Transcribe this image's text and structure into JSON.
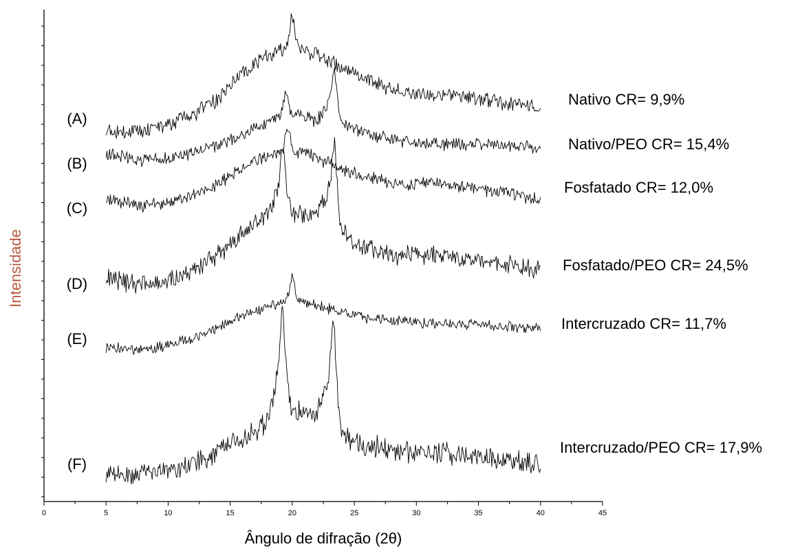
{
  "chart_data": {
    "type": "line",
    "title": "",
    "xlabel": "Ângulo de difração (2θ)",
    "ylabel": "Intensidade",
    "xlim": [
      0,
      45
    ],
    "xticks": [
      0,
      5,
      10,
      15,
      20,
      25,
      30,
      35,
      40,
      45
    ],
    "x_range_data": [
      5,
      40
    ],
    "y_ticks_labeled": false,
    "grid": false,
    "legend": "inline labels: letters left of curves, names right",
    "series": [
      {
        "letter": "(A)",
        "name": "Nativo CR= 9,9%",
        "peaks": [
          [
            20.0,
            1.0
          ]
        ],
        "points": [
          [
            5,
            0.05
          ],
          [
            8,
            0.04
          ],
          [
            10,
            0.12
          ],
          [
            12,
            0.22
          ],
          [
            14,
            0.4
          ],
          [
            16,
            0.7
          ],
          [
            18,
            0.88
          ],
          [
            20,
            1.0
          ],
          [
            22,
            0.9
          ],
          [
            24,
            0.75
          ],
          [
            26,
            0.62
          ],
          [
            28,
            0.52
          ],
          [
            30,
            0.46
          ],
          [
            32,
            0.44
          ],
          [
            34,
            0.42
          ],
          [
            36,
            0.38
          ],
          [
            38,
            0.34
          ],
          [
            40,
            0.3
          ]
        ]
      },
      {
        "letter": "(B)",
        "name": "Nativo/PEO CR= 15,4%",
        "peaks": [
          [
            19.5,
            0.75
          ],
          [
            23.4,
            0.95
          ]
        ],
        "points": [
          [
            5,
            0.18
          ],
          [
            8,
            0.1
          ],
          [
            10,
            0.12
          ],
          [
            12,
            0.2
          ],
          [
            14,
            0.3
          ],
          [
            16,
            0.45
          ],
          [
            18,
            0.6
          ],
          [
            20,
            0.72
          ],
          [
            22,
            0.62
          ],
          [
            23.4,
            0.95
          ],
          [
            24,
            0.6
          ],
          [
            26,
            0.45
          ],
          [
            28,
            0.38
          ],
          [
            30,
            0.34
          ],
          [
            32,
            0.32
          ],
          [
            34,
            0.32
          ],
          [
            36,
            0.3
          ],
          [
            38,
            0.28
          ],
          [
            40,
            0.26
          ]
        ]
      },
      {
        "letter": "(C)",
        "name": "Fosfatado  CR= 12,0%",
        "peaks": [
          [
            19.6,
            0.85
          ]
        ],
        "points": [
          [
            5,
            0.2
          ],
          [
            8,
            0.12
          ],
          [
            10,
            0.15
          ],
          [
            12,
            0.25
          ],
          [
            14,
            0.4
          ],
          [
            16,
            0.62
          ],
          [
            17,
            0.72
          ],
          [
            19,
            0.8
          ],
          [
            20,
            0.85
          ],
          [
            22,
            0.75
          ],
          [
            24,
            0.6
          ],
          [
            26,
            0.5
          ],
          [
            28,
            0.42
          ],
          [
            30,
            0.4
          ],
          [
            32,
            0.42
          ],
          [
            34,
            0.36
          ],
          [
            36,
            0.32
          ],
          [
            38,
            0.26
          ],
          [
            40,
            0.18
          ]
        ]
      },
      {
        "letter": "(D)",
        "name": "Fosfatado/PEO CR= 24,5%",
        "peaks": [
          [
            19.2,
            1.0
          ],
          [
            23.4,
            1.0
          ]
        ],
        "points": [
          [
            5,
            0.15
          ],
          [
            8,
            0.1
          ],
          [
            10,
            0.12
          ],
          [
            12,
            0.22
          ],
          [
            14,
            0.35
          ],
          [
            16,
            0.55
          ],
          [
            17,
            0.65
          ],
          [
            18,
            0.72
          ],
          [
            19.2,
            1.0
          ],
          [
            20,
            0.72
          ],
          [
            22,
            0.72
          ],
          [
            23.4,
            1.0
          ],
          [
            24,
            0.55
          ],
          [
            26,
            0.42
          ],
          [
            28,
            0.36
          ],
          [
            30,
            0.36
          ],
          [
            32,
            0.34
          ],
          [
            34,
            0.32
          ],
          [
            36,
            0.3
          ],
          [
            38,
            0.26
          ],
          [
            40,
            0.22
          ]
        ]
      },
      {
        "letter": "(E)",
        "name": "Intercruzado  CR= 11,7%",
        "peaks": [
          [
            20.0,
            0.95
          ]
        ],
        "points": [
          [
            5,
            0.15
          ],
          [
            8,
            0.1
          ],
          [
            10,
            0.18
          ],
          [
            12,
            0.3
          ],
          [
            14,
            0.45
          ],
          [
            16,
            0.65
          ],
          [
            18,
            0.8
          ],
          [
            20,
            0.95
          ],
          [
            22,
            0.82
          ],
          [
            24,
            0.7
          ],
          [
            26,
            0.62
          ],
          [
            28,
            0.58
          ],
          [
            30,
            0.55
          ],
          [
            32,
            0.54
          ],
          [
            34,
            0.52
          ],
          [
            36,
            0.5
          ],
          [
            38,
            0.48
          ],
          [
            40,
            0.45
          ]
        ]
      },
      {
        "letter": "(F)",
        "name": "Intercruzado/PEO  CR= 17,9%",
        "peaks": [
          [
            19.2,
            1.0
          ],
          [
            23.3,
            0.92
          ]
        ],
        "points": [
          [
            5,
            0.08
          ],
          [
            7,
            0.04
          ],
          [
            10,
            0.08
          ],
          [
            12,
            0.14
          ],
          [
            14,
            0.22
          ],
          [
            16,
            0.34
          ],
          [
            18,
            0.46
          ],
          [
            19.2,
            1.0
          ],
          [
            20,
            0.55
          ],
          [
            22,
            0.52
          ],
          [
            23.3,
            0.92
          ],
          [
            24,
            0.36
          ],
          [
            26,
            0.28
          ],
          [
            28,
            0.24
          ],
          [
            30,
            0.22
          ],
          [
            32,
            0.22
          ],
          [
            34,
            0.2
          ],
          [
            36,
            0.18
          ],
          [
            38,
            0.16
          ],
          [
            40,
            0.14
          ]
        ]
      }
    ]
  }
}
